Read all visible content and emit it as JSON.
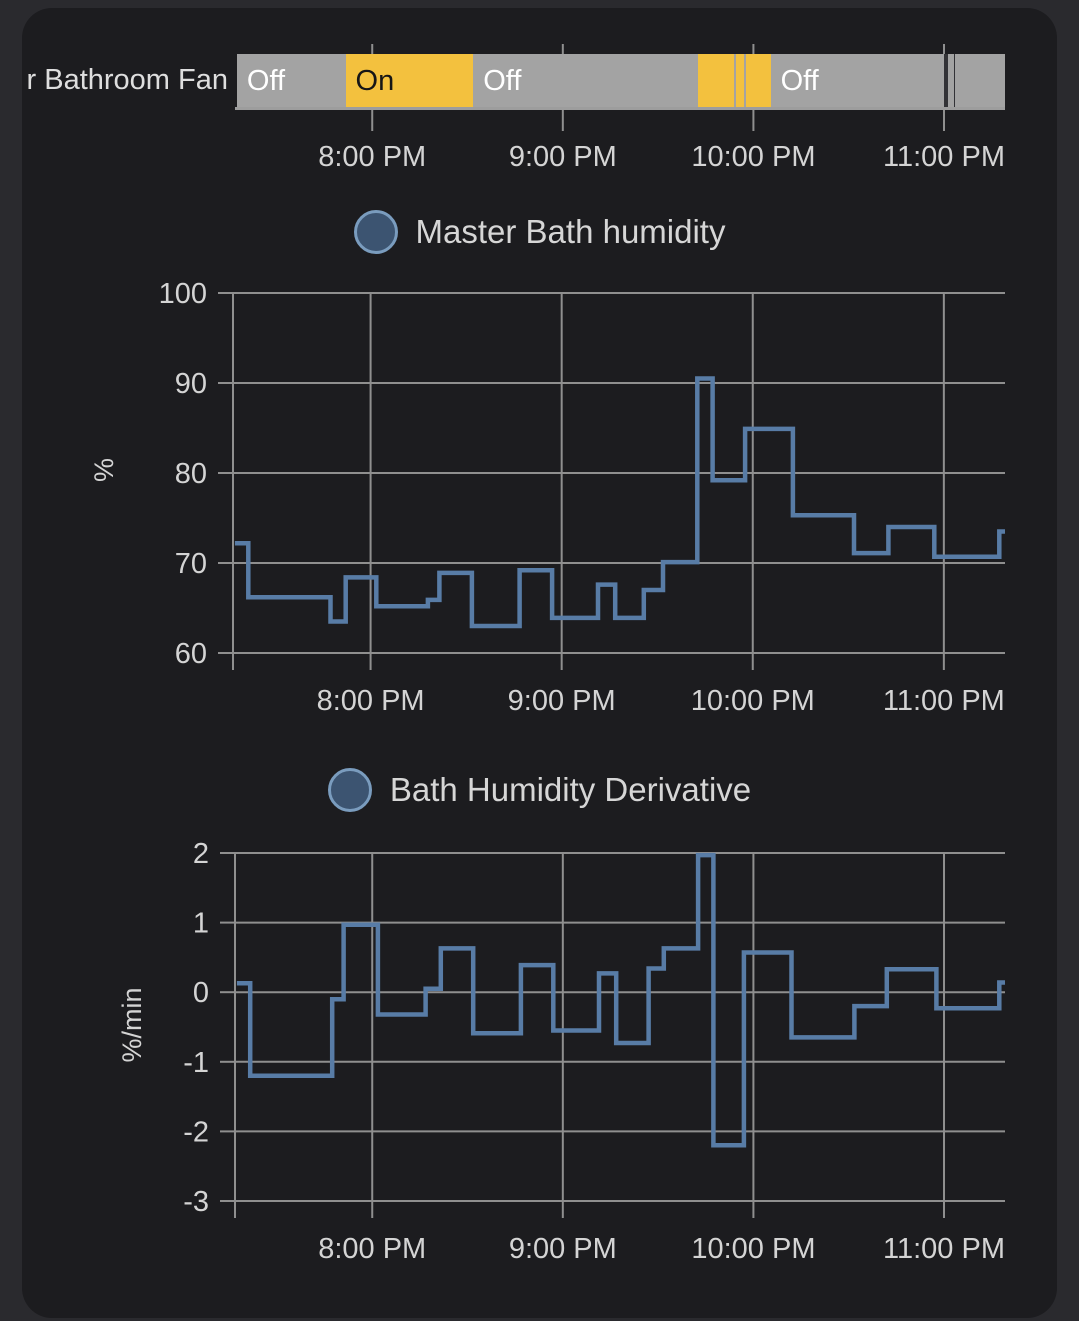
{
  "colors": {
    "page_bg": "#2a2a2e",
    "card_bg": "#1c1c1f",
    "grid": "#8f8f8f",
    "tick_text": "#d4d4d4",
    "line": "#587ca6",
    "legend_text": "#d6d6d6",
    "legend_dot_fill": "#3c5471",
    "legend_dot_stroke": "#7a9cbe",
    "state_on": "#f3c13e",
    "state_off": "#a3a3a3",
    "state_unknown": "#323236",
    "on_text": "#161616",
    "off_text": "#ffffff",
    "baseline": "#9d9d9d"
  },
  "x_axis": {
    "range_hours": [
      19.28,
      23.32
    ],
    "tick_hours": [
      20,
      21,
      22,
      23
    ],
    "tick_labels": [
      "8:00 PM",
      "9:00 PM",
      "10:00 PM",
      "11:00 PM"
    ]
  },
  "timeline": {
    "entity_label": "Master Bathroom Fan",
    "segments": [
      {
        "state": "off",
        "label": "Off",
        "from": 19.29,
        "to": 19.86
      },
      {
        "state": "on",
        "label": "On",
        "from": 19.86,
        "to": 20.53
      },
      {
        "state": "off",
        "label": "Off",
        "from": 20.53,
        "to": 21.71
      },
      {
        "state": "on",
        "label": "",
        "from": 21.71,
        "to": 21.9
      },
      {
        "state": "off",
        "label": "",
        "from": 21.9,
        "to": 21.91
      },
      {
        "state": "on",
        "label": "",
        "from": 21.91,
        "to": 21.95
      },
      {
        "state": "off",
        "label": "",
        "from": 21.95,
        "to": 21.96
      },
      {
        "state": "on",
        "label": "",
        "from": 21.96,
        "to": 22.09
      },
      {
        "state": "off",
        "label": "Off",
        "from": 22.09,
        "to": 23.0
      },
      {
        "state": "unknown",
        "label": "",
        "from": 23.0,
        "to": 23.02
      },
      {
        "state": "off",
        "label": "",
        "from": 23.02,
        "to": 23.05
      },
      {
        "state": "unknown",
        "label": "",
        "from": 23.05,
        "to": 23.06
      },
      {
        "state": "off",
        "label": "",
        "from": 23.06,
        "to": 23.32
      }
    ]
  },
  "chart_data": [
    {
      "type": "line",
      "line_style": "step-after",
      "title": "Master Bath humidity",
      "ylabel": "%",
      "ylim": [
        60,
        100
      ],
      "y_ticks": [
        100,
        90,
        80,
        70,
        60
      ],
      "x_tick_hours": [
        20,
        21,
        22,
        23
      ],
      "x_tick_labels": [
        "8:00 PM",
        "9:00 PM",
        "10:00 PM",
        "11:00 PM"
      ],
      "grid": true,
      "series": [
        {
          "name": "Master Bath humidity",
          "points": [
            [
              19.29,
              72.2
            ],
            [
              19.36,
              66.2
            ],
            [
              19.79,
              63.5
            ],
            [
              19.87,
              68.4
            ],
            [
              20.03,
              65.2
            ],
            [
              20.3,
              65.9
            ],
            [
              20.36,
              68.9
            ],
            [
              20.53,
              63.0
            ],
            [
              20.78,
              69.2
            ],
            [
              20.95,
              63.9
            ],
            [
              21.19,
              67.6
            ],
            [
              21.28,
              63.9
            ],
            [
              21.43,
              67.0
            ],
            [
              21.53,
              70.1
            ],
            [
              21.71,
              90.5
            ],
            [
              21.79,
              79.2
            ],
            [
              21.96,
              84.9
            ],
            [
              22.21,
              75.3
            ],
            [
              22.53,
              71.1
            ],
            [
              22.71,
              74.0
            ],
            [
              22.95,
              70.7
            ],
            [
              23.29,
              73.5
            ]
          ]
        }
      ]
    },
    {
      "type": "line",
      "line_style": "step-after",
      "title": "Bath Humidity Derivative",
      "ylabel": "%/min",
      "ylim": [
        -3,
        2
      ],
      "y_ticks": [
        2,
        1,
        0,
        -1,
        -2,
        -3
      ],
      "x_tick_hours": [
        20,
        21,
        22,
        23
      ],
      "x_tick_labels": [
        "8:00 PM",
        "9:00 PM",
        "10:00 PM",
        "11:00 PM"
      ],
      "grid": true,
      "series": [
        {
          "name": "Bath Humidity Derivative",
          "points": [
            [
              19.29,
              0.13
            ],
            [
              19.36,
              -1.2
            ],
            [
              19.79,
              -0.1
            ],
            [
              19.85,
              0.97
            ],
            [
              20.03,
              -0.32
            ],
            [
              20.28,
              0.05
            ],
            [
              20.36,
              0.63
            ],
            [
              20.53,
              -0.59
            ],
            [
              20.78,
              0.39
            ],
            [
              20.95,
              -0.55
            ],
            [
              21.19,
              0.27
            ],
            [
              21.28,
              -0.73
            ],
            [
              21.45,
              0.34
            ],
            [
              21.53,
              0.63
            ],
            [
              21.71,
              1.97
            ],
            [
              21.79,
              -2.2
            ],
            [
              21.95,
              0.57
            ],
            [
              22.2,
              -0.65
            ],
            [
              22.53,
              -0.2
            ],
            [
              22.7,
              0.33
            ],
            [
              22.96,
              -0.23
            ],
            [
              23.29,
              0.14
            ]
          ]
        }
      ]
    }
  ]
}
